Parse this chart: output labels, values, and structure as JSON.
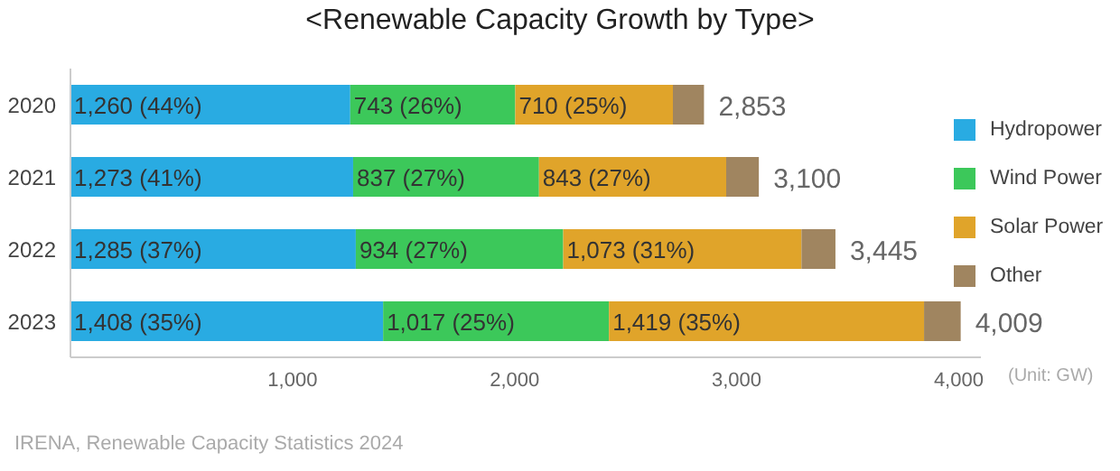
{
  "chart_data": {
    "type": "bar",
    "orientation": "horizontal",
    "stacked": true,
    "title": "<Renewable Capacity Growth by Type>",
    "categories": [
      "2020",
      "2021",
      "2022",
      "2023"
    ],
    "series": [
      {
        "name": "Hydropower",
        "color": "#29abe2",
        "values": [
          1260,
          1273,
          1285,
          1408
        ],
        "value_labels": [
          "1,260 (44%)",
          "1,273 (41%)",
          "1,285 (37%)",
          "1,408 (35%)"
        ]
      },
      {
        "name": "Wind Power",
        "color": "#3cc85a",
        "values": [
          743,
          837,
          934,
          1017
        ],
        "value_labels": [
          "743 (26%)",
          "837 (27%)",
          "934 (27%)",
          "1,017 (25%)"
        ]
      },
      {
        "name": "Solar Power",
        "color": "#e0a42a",
        "values": [
          710,
          843,
          1073,
          1419
        ],
        "value_labels": [
          "710 (25%)",
          "843 (27%)",
          "1,073 (31%)",
          "1,419 (35%)"
        ]
      },
      {
        "name": "Other",
        "color": "#a08560",
        "values": [
          140,
          147,
          153,
          165
        ]
      }
    ],
    "totals": [
      "2,853",
      "3,100",
      "3,445",
      "4,009"
    ],
    "xlim": [
      0,
      4100
    ],
    "xticks": [
      {
        "value": 1000,
        "label": "1,000"
      },
      {
        "value": 2000,
        "label": "2,000"
      },
      {
        "value": 3000,
        "label": "3,000"
      },
      {
        "value": 4000,
        "label": "4,000"
      }
    ],
    "grid": false,
    "legend": "right",
    "annotations": [
      "(Unit: GW)",
      "IRENA, Renewable Capacity Statistics 2024"
    ]
  }
}
